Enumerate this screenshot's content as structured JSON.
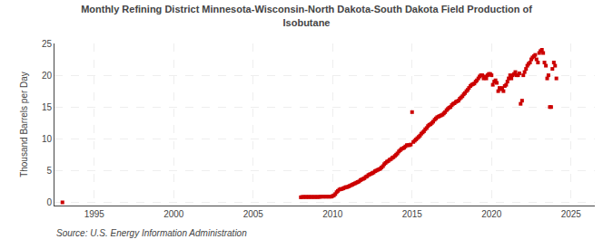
{
  "chart_data": {
    "type": "scatter",
    "title": "Monthly Refining District Minnesota-Wisconsin-North Dakota-South Dakota Field Production of\nIsobutane",
    "ylabel": "Thousand Barrels per Day",
    "annotations": [
      "Source: U.S. Energy Information Administration"
    ],
    "color": "#cc0000",
    "marker": "square",
    "grid": true,
    "xlim": [
      1992.5,
      2026.5
    ],
    "ylim": [
      -0.5,
      25
    ],
    "xticks": [
      1995,
      2000,
      2005,
      2010,
      2015,
      2020,
      2025
    ],
    "yticks": [
      0,
      5,
      10,
      15,
      20,
      25
    ],
    "x": [
      1993.0,
      2008.0,
      2008.08,
      2008.17,
      2008.25,
      2008.33,
      2008.42,
      2008.5,
      2008.58,
      2008.67,
      2008.75,
      2008.83,
      2008.92,
      2009.0,
      2009.08,
      2009.17,
      2009.25,
      2009.33,
      2009.42,
      2009.5,
      2009.58,
      2009.67,
      2009.75,
      2009.83,
      2009.92,
      2010.0,
      2010.08,
      2010.17,
      2010.25,
      2010.33,
      2010.42,
      2010.5,
      2010.58,
      2010.67,
      2010.75,
      2010.83,
      2010.92,
      2011.0,
      2011.08,
      2011.17,
      2011.25,
      2011.33,
      2011.42,
      2011.5,
      2011.58,
      2011.67,
      2011.75,
      2011.83,
      2011.92,
      2012.0,
      2012.08,
      2012.17,
      2012.25,
      2012.33,
      2012.42,
      2012.5,
      2012.58,
      2012.67,
      2012.75,
      2012.83,
      2012.92,
      2013.0,
      2013.08,
      2013.17,
      2013.25,
      2013.33,
      2013.42,
      2013.5,
      2013.58,
      2013.67,
      2013.75,
      2013.83,
      2013.92,
      2014.0,
      2014.08,
      2014.17,
      2014.25,
      2014.33,
      2014.42,
      2014.5,
      2014.58,
      2014.67,
      2014.75,
      2014.83,
      2014.92,
      2015.0,
      2015.08,
      2015.17,
      2015.25,
      2015.33,
      2015.42,
      2015.5,
      2015.58,
      2015.67,
      2015.75,
      2015.83,
      2015.92,
      2016.0,
      2016.08,
      2016.17,
      2016.25,
      2016.33,
      2016.42,
      2016.5,
      2016.58,
      2016.67,
      2016.75,
      2016.83,
      2016.92,
      2017.0,
      2017.08,
      2017.17,
      2017.25,
      2017.33,
      2017.42,
      2017.5,
      2017.58,
      2017.67,
      2017.75,
      2017.83,
      2017.92,
      2018.0,
      2018.08,
      2018.17,
      2018.25,
      2018.33,
      2018.42,
      2018.5,
      2018.58,
      2018.67,
      2018.75,
      2018.83,
      2018.92,
      2019.0,
      2019.08,
      2019.17,
      2019.25,
      2019.33,
      2019.42,
      2019.5,
      2019.58,
      2019.67,
      2019.75,
      2019.83,
      2019.92,
      2020.0,
      2020.08,
      2020.17,
      2020.25,
      2020.33,
      2020.42,
      2020.5,
      2020.58,
      2020.67,
      2020.75,
      2020.83,
      2020.92,
      2021.0,
      2021.08,
      2021.17,
      2021.25,
      2021.33,
      2021.42,
      2021.5,
      2021.58,
      2021.67,
      2021.75,
      2021.83,
      2021.92,
      2022.0,
      2022.08,
      2022.17,
      2022.25,
      2022.33,
      2022.42,
      2022.5,
      2022.58,
      2022.67,
      2022.75,
      2022.83,
      2022.92,
      2023.0,
      2023.08,
      2023.17,
      2023.25,
      2023.33,
      2023.42,
      2023.5,
      2023.58,
      2023.67,
      2023.75,
      2023.83,
      2023.92,
      2024.0,
      2024.08
    ],
    "values": [
      0.0,
      0.8,
      0.85,
      0.85,
      0.85,
      0.85,
      0.85,
      0.85,
      0.85,
      0.85,
      0.85,
      0.85,
      0.85,
      0.85,
      0.85,
      0.85,
      0.9,
      0.9,
      0.9,
      0.9,
      0.9,
      0.9,
      0.9,
      0.9,
      0.9,
      1.0,
      1.1,
      1.3,
      1.6,
      1.8,
      2.0,
      2.1,
      2.1,
      2.2,
      2.3,
      2.4,
      2.4,
      2.5,
      2.6,
      2.7,
      2.8,
      2.9,
      3.0,
      3.1,
      3.2,
      3.3,
      3.5,
      3.6,
      3.7,
      3.8,
      4.0,
      4.1,
      4.3,
      4.4,
      4.5,
      4.6,
      4.7,
      4.9,
      5.0,
      5.1,
      5.2,
      5.3,
      5.5,
      5.7,
      6.0,
      6.2,
      6.4,
      6.5,
      6.7,
      6.8,
      7.0,
      7.1,
      7.3,
      7.5,
      7.7,
      8.0,
      8.2,
      8.4,
      8.5,
      8.6,
      8.8,
      9.0,
      9.0,
      9.0,
      9.1,
      14.2,
      9.5,
      9.7,
      9.9,
      10.1,
      10.3,
      10.5,
      10.8,
      11.0,
      11.2,
      11.5,
      11.7,
      12.0,
      12.2,
      12.3,
      12.5,
      12.7,
      13.0,
      13.2,
      13.4,
      13.5,
      13.6,
      13.7,
      13.8,
      14.0,
      14.2,
      14.5,
      14.7,
      14.9,
      15.0,
      15.3,
      15.5,
      15.6,
      15.8,
      15.9,
      16.0,
      16.3,
      16.5,
      16.7,
      17.0,
      17.2,
      17.5,
      17.7,
      18.0,
      18.3,
      18.5,
      18.6,
      18.7,
      19.0,
      19.2,
      19.5,
      19.8,
      20.0,
      20.0,
      19.5,
      19.8,
      19.5,
      20.0,
      20.2,
      20.2,
      20.0,
      18.5,
      19.0,
      19.2,
      18.8,
      17.5,
      18.0,
      17.8,
      18.0,
      17.5,
      18.3,
      18.5,
      19.0,
      19.5,
      20.0,
      19.5,
      20.0,
      20.2,
      20.5,
      20.0,
      20.0,
      20.3,
      15.5,
      16.0,
      20.0,
      20.5,
      21.0,
      21.5,
      21.8,
      22.0,
      22.5,
      22.8,
      23.0,
      23.2,
      22.5,
      22.0,
      23.5,
      23.8,
      24.0,
      23.5,
      22.0,
      21.5,
      19.5,
      20.0,
      15.0,
      15.0,
      21.0,
      22.0,
      21.5,
      19.5
    ]
  }
}
